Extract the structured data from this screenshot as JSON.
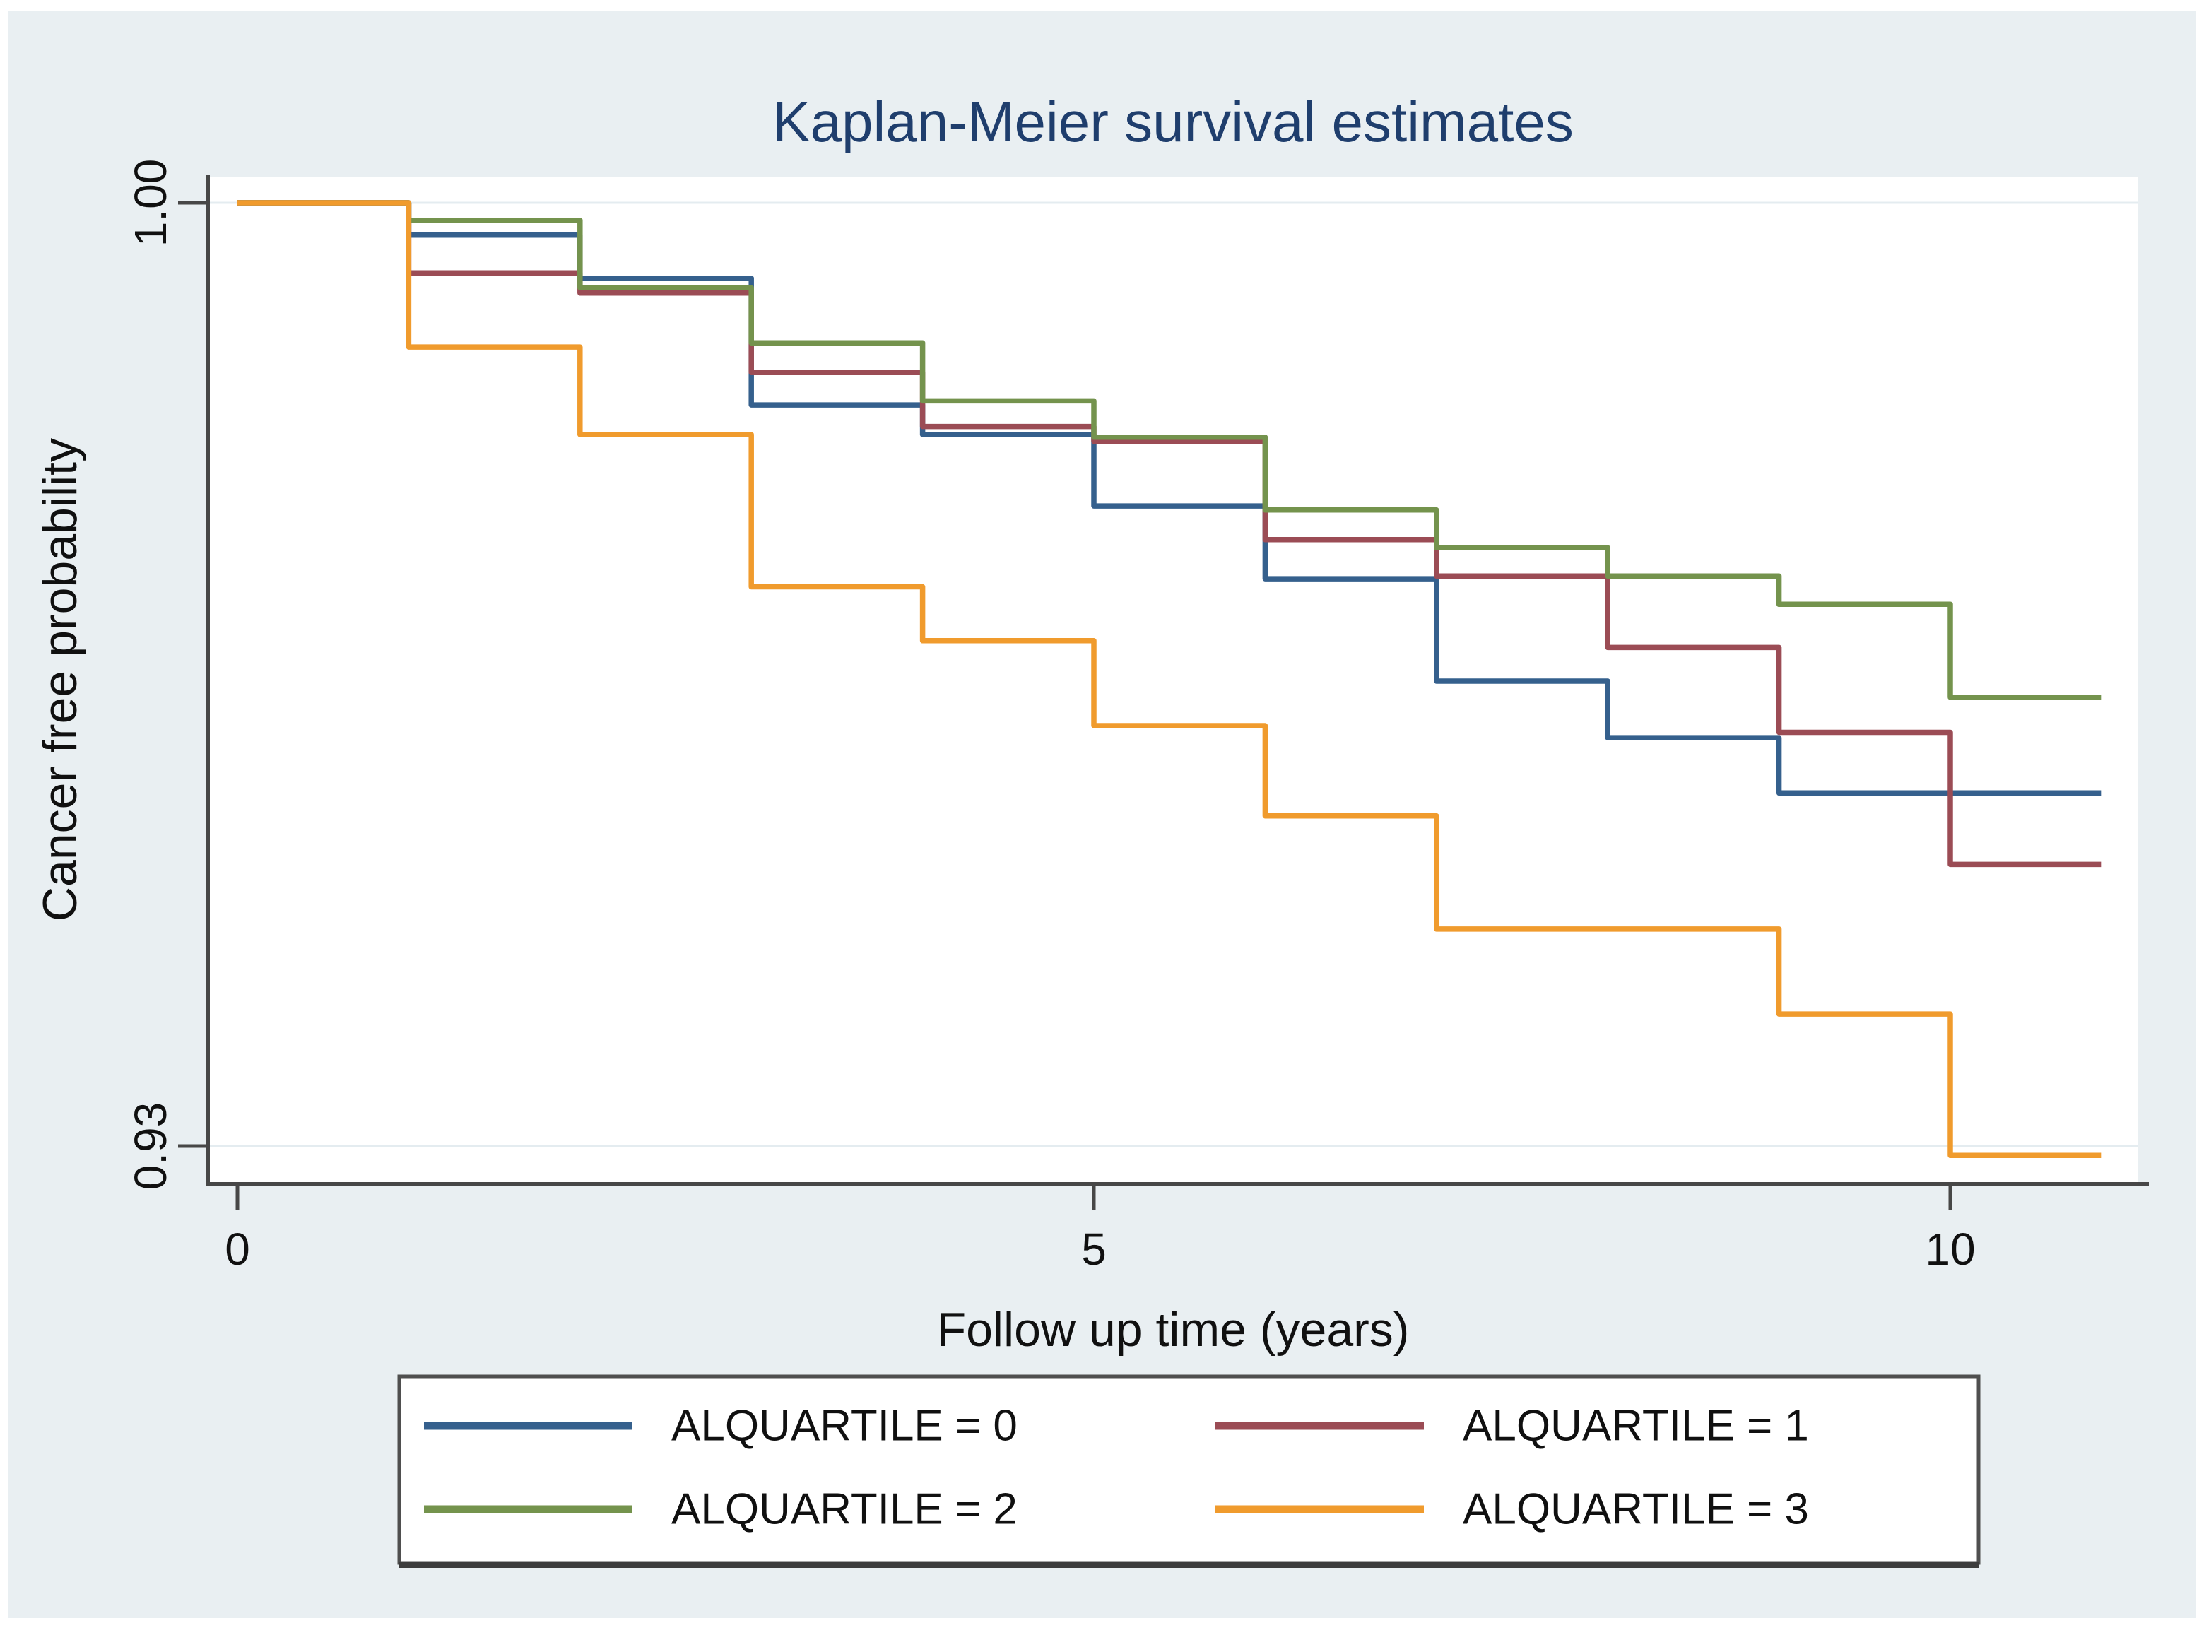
{
  "figure": {
    "title": "Kaplan-Meier survival estimates",
    "background_color": "#e9eff2",
    "plot_background": "#ffffff",
    "title_color": "#1f3e6d",
    "axis_color": "#474747",
    "gridline_color": "#e4ecf0"
  },
  "chart_data": {
    "type": "line",
    "subtype": "kaplan-meier-step",
    "title": "Kaplan-Meier survival estimates",
    "xlabel": "Follow up time (years)",
    "ylabel": "Cancer free probability",
    "xlim": [
      -0.18,
      11.1
    ],
    "ylim": [
      0.9273,
      1.0019
    ],
    "grid": "horizontal-at-y-ticks",
    "legend_position": "bottom-center",
    "x_ticks": [
      {
        "value": 0,
        "label": "0"
      },
      {
        "value": 5,
        "label": "5"
      },
      {
        "value": 10,
        "label": "10"
      }
    ],
    "y_ticks": [
      {
        "value": 1.0,
        "label": "1.00"
      },
      {
        "value": 0.93,
        "label": "0.93"
      }
    ],
    "step_years": [
      0,
      1,
      2,
      3,
      4,
      5,
      6,
      7,
      8,
      9,
      10
    ],
    "curve_end_year": 10.88,
    "series": [
      {
        "name": "ALQUARTILE = 0",
        "color": "#35608d",
        "levels": [
          1.0,
          0.9976,
          0.9944,
          0.985,
          0.9828,
          0.9775,
          0.9721,
          0.9645,
          0.9603,
          0.9562,
          0.9562
        ]
      },
      {
        "name": "ALQUARTILE = 1",
        "color": "#9b4c55",
        "levels": [
          1.0,
          0.9948,
          0.9933,
          0.9874,
          0.9834,
          0.9823,
          0.975,
          0.9723,
          0.967,
          0.9607,
          0.9509
        ]
      },
      {
        "name": "ALQUARTILE = 2",
        "color": "#74934d",
        "levels": [
          1.0,
          0.9987,
          0.9937,
          0.9896,
          0.9853,
          0.9826,
          0.9772,
          0.9744,
          0.9723,
          0.9702,
          0.9633
        ]
      },
      {
        "name": "ALQUARTILE = 3",
        "color": "#f09b2d",
        "levels": [
          1.0,
          0.9893,
          0.9828,
          0.9715,
          0.9675,
          0.9612,
          0.9545,
          0.9461,
          0.9461,
          0.9398,
          0.9293
        ]
      }
    ]
  },
  "legend": {
    "items": [
      {
        "label": "ALQUARTILE = 0",
        "color": "#35608d"
      },
      {
        "label": "ALQUARTILE = 1",
        "color": "#9b4c55"
      },
      {
        "label": "ALQUARTILE = 2",
        "color": "#74934d"
      },
      {
        "label": "ALQUARTILE = 3",
        "color": "#f09b2d"
      }
    ]
  }
}
